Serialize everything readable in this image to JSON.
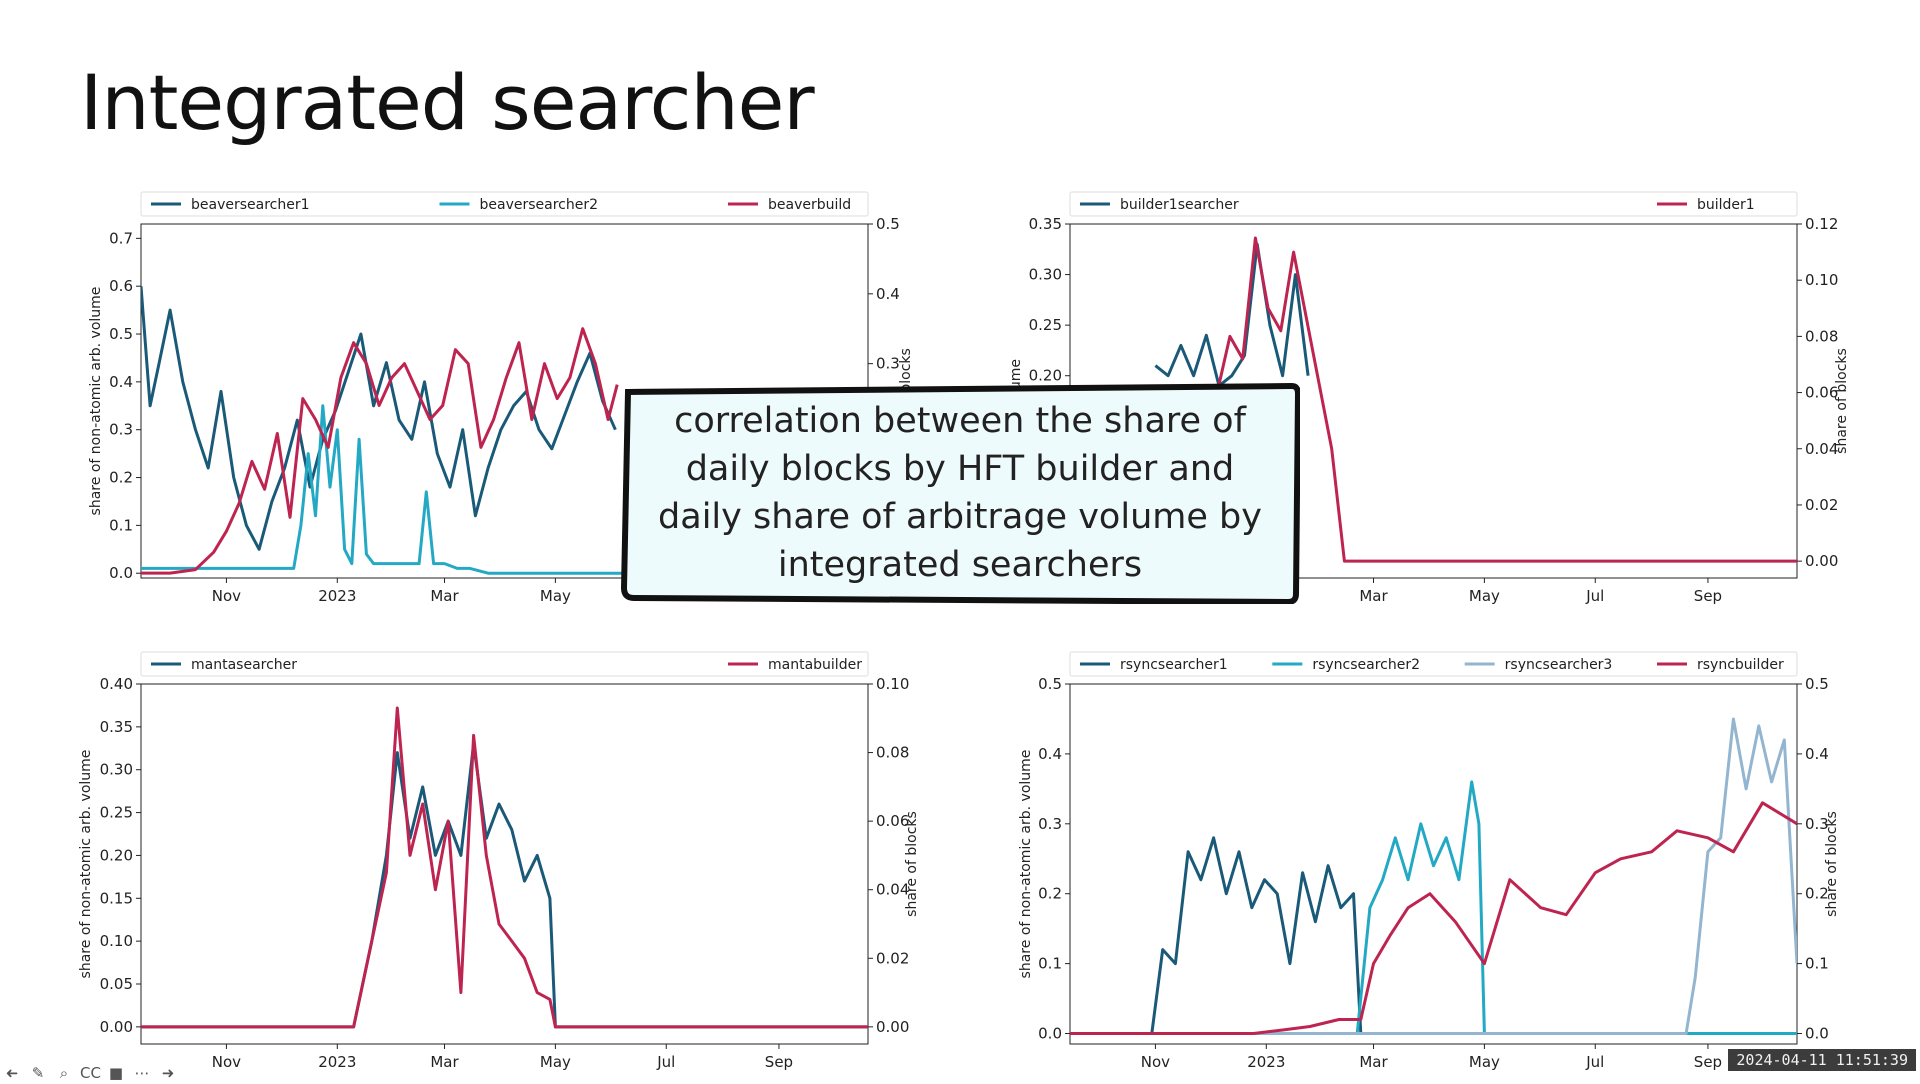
{
  "slide": {
    "title": "Integrated searcher",
    "callout": "correlation between the share of daily blocks by HFT builder and daily share of arbitrage volume by integrated searchers",
    "timestamp": "2024-04-11 11:51:39"
  },
  "toolbar": {
    "items": [
      {
        "name": "back-icon",
        "glyph": "➜"
      },
      {
        "name": "pen-icon",
        "glyph": "✎"
      },
      {
        "name": "zoom-icon",
        "glyph": "⌕"
      },
      {
        "name": "captions-icon",
        "glyph": "CC"
      },
      {
        "name": "camera-icon",
        "glyph": "■"
      },
      {
        "name": "more-icon",
        "glyph": "⋯"
      },
      {
        "name": "forward-icon",
        "glyph": "➜"
      }
    ]
  },
  "colors": {
    "dark_blue": "#1a5a78",
    "cyan": "#24a9c4",
    "light_blue": "#93b5cf",
    "crimson": "#be2450",
    "callout_fill": "#eefbfc"
  },
  "chart_data": [
    {
      "type": "line",
      "panel": "top-left",
      "legend": [
        "beaversearcher1",
        "beaversearcher2",
        "beaverbuild"
      ],
      "legend_placement": "top-outside",
      "xlabel": "",
      "ylabel": "share of non-atomic arb. volume",
      "y2label": "share of blocks",
      "xlim": [
        "2022-09-15",
        "2023-10-20"
      ],
      "x_ticks": [
        {
          "date": "2022-11-01",
          "label": "Nov"
        },
        {
          "date": "2023-01-01",
          "label": "2023"
        },
        {
          "date": "2023-03-01",
          "label": "Mar"
        },
        {
          "date": "2023-05-01",
          "label": "May"
        }
      ],
      "ylim": [
        -0.01,
        0.73
      ],
      "y_ticks": [
        "0.0",
        "0.1",
        "0.2",
        "0.3",
        "0.4",
        "0.5",
        "0.6",
        "0.7"
      ],
      "y2lim": [
        -0.007,
        0.5
      ],
      "y2_ticks": [
        "0.3",
        "0.4",
        "0.5"
      ],
      "series": [
        {
          "name": "beaversearcher1",
          "axis": "left",
          "color": "#1a5a78",
          "x": [
            "2022-09-15",
            "2022-09-20",
            "2022-09-25",
            "2022-10-01",
            "2022-10-08",
            "2022-10-15",
            "2022-10-22",
            "2022-10-29",
            "2022-11-05",
            "2022-11-12",
            "2022-11-19",
            "2022-11-26",
            "2022-12-03",
            "2022-12-10",
            "2022-12-17",
            "2022-12-24",
            "2022-12-31",
            "2023-01-07",
            "2023-01-14",
            "2023-01-21",
            "2023-01-28",
            "2023-02-04",
            "2023-02-11",
            "2023-02-18",
            "2023-02-25",
            "2023-03-04",
            "2023-03-11",
            "2023-03-18",
            "2023-03-25",
            "2023-04-01",
            "2023-04-08",
            "2023-04-15",
            "2023-04-22",
            "2023-04-29",
            "2023-05-06",
            "2023-05-13",
            "2023-05-20",
            "2023-05-27",
            "2023-06-03"
          ],
          "y": [
            0.6,
            0.35,
            0.44,
            0.55,
            0.4,
            0.3,
            0.22,
            0.38,
            0.2,
            0.1,
            0.05,
            0.15,
            0.22,
            0.32,
            0.18,
            0.28,
            0.34,
            0.42,
            0.5,
            0.35,
            0.44,
            0.32,
            0.28,
            0.4,
            0.25,
            0.18,
            0.3,
            0.12,
            0.22,
            0.3,
            0.35,
            0.38,
            0.3,
            0.26,
            0.33,
            0.4,
            0.46,
            0.36,
            0.3
          ]
        },
        {
          "name": "beaversearcher2",
          "axis": "left",
          "color": "#24a9c4",
          "x": [
            "2022-09-15",
            "2022-10-01",
            "2022-10-15",
            "2022-11-01",
            "2022-11-15",
            "2022-12-01",
            "2022-12-08",
            "2022-12-12",
            "2022-12-16",
            "2022-12-20",
            "2022-12-24",
            "2022-12-28",
            "2023-01-01",
            "2023-01-05",
            "2023-01-09",
            "2023-01-13",
            "2023-01-17",
            "2023-01-21",
            "2023-01-25",
            "2023-02-01",
            "2023-02-08",
            "2023-02-15",
            "2023-02-19",
            "2023-02-23",
            "2023-03-01",
            "2023-03-08",
            "2023-03-15",
            "2023-03-25",
            "2023-04-15",
            "2023-05-15",
            "2023-06-10"
          ],
          "y": [
            0.01,
            0.01,
            0.01,
            0.01,
            0.01,
            0.01,
            0.01,
            0.1,
            0.25,
            0.12,
            0.35,
            0.18,
            0.3,
            0.05,
            0.02,
            0.28,
            0.04,
            0.02,
            0.02,
            0.02,
            0.02,
            0.02,
            0.17,
            0.02,
            0.02,
            0.01,
            0.01,
            0.0,
            0.0,
            0.0,
            0.0
          ]
        },
        {
          "name": "beaverbuild",
          "axis": "right",
          "color": "#be2450",
          "x": [
            "2022-09-15",
            "2022-10-01",
            "2022-10-15",
            "2022-10-25",
            "2022-11-01",
            "2022-11-08",
            "2022-11-15",
            "2022-11-22",
            "2022-11-29",
            "2022-12-06",
            "2022-12-13",
            "2022-12-20",
            "2022-12-27",
            "2023-01-03",
            "2023-01-10",
            "2023-01-17",
            "2023-01-24",
            "2023-01-31",
            "2023-02-07",
            "2023-02-14",
            "2023-02-21",
            "2023-02-28",
            "2023-03-07",
            "2023-03-14",
            "2023-03-21",
            "2023-03-28",
            "2023-04-04",
            "2023-04-11",
            "2023-04-18",
            "2023-04-25",
            "2023-05-02",
            "2023-05-09",
            "2023-05-16",
            "2023-05-23",
            "2023-05-30",
            "2023-06-04"
          ],
          "y": [
            0.0,
            0.0,
            0.005,
            0.03,
            0.06,
            0.1,
            0.16,
            0.12,
            0.2,
            0.08,
            0.25,
            0.22,
            0.18,
            0.28,
            0.33,
            0.3,
            0.24,
            0.28,
            0.3,
            0.26,
            0.22,
            0.24,
            0.32,
            0.3,
            0.18,
            0.22,
            0.28,
            0.33,
            0.22,
            0.3,
            0.25,
            0.28,
            0.35,
            0.3,
            0.22,
            0.27
          ]
        }
      ]
    },
    {
      "type": "line",
      "panel": "top-right",
      "legend": [
        "builder1searcher",
        "builder1"
      ],
      "legend_placement": "top-outside",
      "xlabel": "",
      "ylabel": "arb. volume",
      "y2label": "share of blocks",
      "xlim": [
        "2022-09-15",
        "2023-10-20"
      ],
      "x_ticks": [
        {
          "date": "2023-03-01",
          "label": "Mar"
        },
        {
          "date": "2023-05-01",
          "label": "May"
        },
        {
          "date": "2023-07-01",
          "label": "Jul"
        },
        {
          "date": "2023-09-01",
          "label": "Sep"
        }
      ],
      "ylim": [
        0.0,
        0.35
      ],
      "y_ticks": [
        "0.20",
        "0.25",
        "0.30",
        "0.35"
      ],
      "y2lim": [
        -0.006,
        0.12
      ],
      "y2_ticks": [
        "0.00",
        "0.02",
        "0.04",
        "0.06",
        "0.08",
        "0.10",
        "0.12"
      ],
      "series": [
        {
          "name": "builder1searcher",
          "axis": "left",
          "color": "#1a5a78",
          "x": [
            "2022-11-01",
            "2022-11-08",
            "2022-11-15",
            "2022-11-22",
            "2022-11-29",
            "2022-12-06",
            "2022-12-13",
            "2022-12-20",
            "2022-12-27",
            "2023-01-03",
            "2023-01-10",
            "2023-01-17",
            "2023-01-24"
          ],
          "y": [
            0.21,
            0.2,
            0.23,
            0.2,
            0.24,
            0.19,
            0.2,
            0.22,
            0.33,
            0.25,
            0.2,
            0.3,
            0.2
          ]
        },
        {
          "name": "builder1",
          "axis": "right",
          "color": "#be2450",
          "x": [
            "2022-12-05",
            "2022-12-12",
            "2022-12-19",
            "2022-12-26",
            "2023-01-02",
            "2023-01-09",
            "2023-01-16",
            "2023-02-06",
            "2023-02-13",
            "2023-03-01",
            "2023-05-01",
            "2023-07-01",
            "2023-09-01",
            "2023-10-20"
          ],
          "y": [
            0.06,
            0.08,
            0.072,
            0.115,
            0.09,
            0.082,
            0.11,
            0.04,
            0.0,
            0.0,
            0.0,
            0.0,
            0.0,
            0.0
          ]
        }
      ]
    },
    {
      "type": "line",
      "panel": "bottom-left",
      "legend": [
        "mantasearcher",
        "mantabuilder"
      ],
      "legend_placement": "top-outside",
      "xlabel": "",
      "ylabel": "share of non-atomic arb. volume",
      "y2label": "share of blocks",
      "xlim": [
        "2022-09-15",
        "2023-10-20"
      ],
      "x_ticks": [
        {
          "date": "2022-11-01",
          "label": "Nov"
        },
        {
          "date": "2023-01-01",
          "label": "2023"
        },
        {
          "date": "2023-03-01",
          "label": "Mar"
        },
        {
          "date": "2023-05-01",
          "label": "May"
        },
        {
          "date": "2023-07-01",
          "label": "Jul"
        },
        {
          "date": "2023-09-01",
          "label": "Sep"
        }
      ],
      "ylim": [
        -0.02,
        0.4
      ],
      "y_ticks": [
        "0.00",
        "0.05",
        "0.10",
        "0.15",
        "0.20",
        "0.25",
        "0.30",
        "0.35",
        "0.40"
      ],
      "y2lim": [
        -0.005,
        0.1
      ],
      "y2_ticks": [
        "0.00",
        "0.02",
        "0.04",
        "0.06",
        "0.08",
        "0.10"
      ],
      "series": [
        {
          "name": "mantasearcher",
          "axis": "left",
          "color": "#1a5a78",
          "x": [
            "2022-09-15",
            "2023-01-10",
            "2023-01-20",
            "2023-01-28",
            "2023-02-03",
            "2023-02-10",
            "2023-02-17",
            "2023-02-24",
            "2023-03-03",
            "2023-03-10",
            "2023-03-17",
            "2023-03-24",
            "2023-03-31",
            "2023-04-07",
            "2023-04-14",
            "2023-04-21",
            "2023-04-28",
            "2023-05-01",
            "2023-06-01",
            "2023-10-20"
          ],
          "y": [
            0.0,
            0.0,
            0.1,
            0.2,
            0.32,
            0.22,
            0.28,
            0.2,
            0.24,
            0.2,
            0.33,
            0.22,
            0.26,
            0.23,
            0.17,
            0.2,
            0.15,
            0.0,
            0.0,
            0.0
          ]
        },
        {
          "name": "mantabuilder",
          "axis": "right",
          "color": "#be2450",
          "x": [
            "2022-09-15",
            "2023-01-10",
            "2023-01-20",
            "2023-01-28",
            "2023-02-03",
            "2023-02-10",
            "2023-02-17",
            "2023-02-24",
            "2023-03-03",
            "2023-03-10",
            "2023-03-17",
            "2023-03-24",
            "2023-03-31",
            "2023-04-07",
            "2023-04-14",
            "2023-04-21",
            "2023-04-28",
            "2023-05-01",
            "2023-06-01",
            "2023-10-20"
          ],
          "y": [
            0.0,
            0.0,
            0.025,
            0.045,
            0.093,
            0.05,
            0.065,
            0.04,
            0.06,
            0.01,
            0.085,
            0.05,
            0.03,
            0.025,
            0.02,
            0.01,
            0.008,
            0.0,
            0.0,
            0.0
          ]
        }
      ]
    },
    {
      "type": "line",
      "panel": "bottom-right",
      "legend": [
        "rsyncsearcher1",
        "rsyncsearcher2",
        "rsyncsearcher3",
        "rsyncbuilder"
      ],
      "legend_placement": "top-outside",
      "xlabel": "",
      "ylabel": "share of non-atomic arb. volume",
      "y2label": "share of blocks",
      "xlim": [
        "2022-09-15",
        "2023-10-20"
      ],
      "x_ticks": [
        {
          "date": "2022-11-01",
          "label": "Nov"
        },
        {
          "date": "2023-01-01",
          "label": "2023"
        },
        {
          "date": "2023-03-01",
          "label": "Mar"
        },
        {
          "date": "2023-05-01",
          "label": "May"
        },
        {
          "date": "2023-07-01",
          "label": "Jul"
        },
        {
          "date": "2023-09-01",
          "label": "Sep"
        }
      ],
      "ylim": [
        -0.015,
        0.5
      ],
      "y_ticks": [
        "0.0",
        "0.1",
        "0.2",
        "0.3",
        "0.4",
        "0.5"
      ],
      "y2lim": [
        -0.015,
        0.5
      ],
      "y2_ticks": [
        "0.0",
        "0.1",
        "0.2",
        "0.3",
        "0.4",
        "0.5"
      ],
      "series": [
        {
          "name": "rsyncsearcher1",
          "axis": "left",
          "color": "#1a5a78",
          "x": [
            "2022-09-15",
            "2022-10-30",
            "2022-11-05",
            "2022-11-12",
            "2022-11-19",
            "2022-11-26",
            "2022-12-03",
            "2022-12-10",
            "2022-12-17",
            "2022-12-24",
            "2022-12-31",
            "2023-01-07",
            "2023-01-14",
            "2023-01-21",
            "2023-01-28",
            "2023-02-04",
            "2023-02-11",
            "2023-02-18",
            "2023-02-22",
            "2023-03-01",
            "2023-04-01",
            "2023-06-01",
            "2023-10-20"
          ],
          "y": [
            0.0,
            0.0,
            0.12,
            0.1,
            0.26,
            0.22,
            0.28,
            0.2,
            0.26,
            0.18,
            0.22,
            0.2,
            0.1,
            0.23,
            0.16,
            0.24,
            0.18,
            0.2,
            0.0,
            0.0,
            0.0,
            0.0,
            0.0
          ]
        },
        {
          "name": "rsyncsearcher2",
          "axis": "left",
          "color": "#24a9c4",
          "x": [
            "2022-09-15",
            "2023-02-20",
            "2023-02-27",
            "2023-03-06",
            "2023-03-13",
            "2023-03-20",
            "2023-03-27",
            "2023-04-03",
            "2023-04-10",
            "2023-04-17",
            "2023-04-24",
            "2023-04-28",
            "2023-05-01",
            "2023-06-01",
            "2023-10-20"
          ],
          "y": [
            0.0,
            0.0,
            0.18,
            0.22,
            0.28,
            0.22,
            0.3,
            0.24,
            0.28,
            0.22,
            0.36,
            0.3,
            0.0,
            0.0,
            0.0
          ]
        },
        {
          "name": "rsyncsearcher3",
          "axis": "left",
          "color": "#93b5cf",
          "x": [
            "2022-09-15",
            "2023-08-20",
            "2023-08-25",
            "2023-09-01",
            "2023-09-08",
            "2023-09-15",
            "2023-09-22",
            "2023-09-29",
            "2023-10-06",
            "2023-10-13",
            "2023-10-20"
          ],
          "y": [
            0.0,
            0.0,
            0.08,
            0.26,
            0.28,
            0.45,
            0.35,
            0.44,
            0.36,
            0.42,
            0.1
          ]
        },
        {
          "name": "rsyncbuilder",
          "axis": "right",
          "color": "#be2450",
          "x": [
            "2022-09-15",
            "2022-12-25",
            "2023-01-10",
            "2023-01-25",
            "2023-02-10",
            "2023-02-22",
            "2023-03-01",
            "2023-03-10",
            "2023-03-20",
            "2023-04-01",
            "2023-04-15",
            "2023-05-01",
            "2023-05-15",
            "2023-06-01",
            "2023-06-15",
            "2023-07-01",
            "2023-07-15",
            "2023-08-01",
            "2023-08-15",
            "2023-09-01",
            "2023-09-15",
            "2023-10-01",
            "2023-10-20"
          ],
          "y": [
            0.0,
            0.0,
            0.005,
            0.01,
            0.02,
            0.02,
            0.1,
            0.14,
            0.18,
            0.2,
            0.16,
            0.1,
            0.22,
            0.18,
            0.17,
            0.23,
            0.25,
            0.26,
            0.29,
            0.28,
            0.26,
            0.33,
            0.3
          ]
        }
      ]
    }
  ]
}
